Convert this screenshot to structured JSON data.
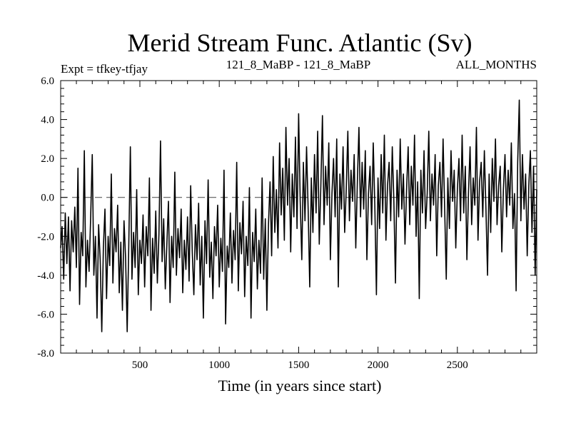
{
  "chart_data": {
    "type": "line",
    "title": "Merid Stream Func. Atlantic (Sv)",
    "subtitle_left": "Expt = tfkey-tfjay",
    "subtitle_center": "121_8_MaBP - 121_8_MaBP",
    "subtitle_right": "ALL_MONTHS",
    "xlabel": "Time (in years since start)",
    "ylabel": "",
    "xlim": [
      1,
      3000
    ],
    "ylim": [
      -8.0,
      6.0
    ],
    "x_ticks": [
      500,
      1000,
      1500,
      2000,
      2500
    ],
    "x_tick_labels": [
      "500",
      "1000",
      "1500",
      "2000",
      "2500"
    ],
    "y_ticks": [
      -8,
      -6,
      -4,
      -2,
      0,
      2,
      4,
      6
    ],
    "y_tick_labels": [
      "-8.0",
      "-6.0",
      "-4.0",
      "-2.0",
      "0.0",
      "2.0",
      "4.0",
      "6.0"
    ],
    "zero_reference_line": true,
    "grid": false,
    "line_color": "#000000",
    "series": [
      {
        "values": [
          [
            1,
            -2.6
          ],
          [
            10,
            -1.5
          ],
          [
            20,
            -4.2
          ],
          [
            30,
            -0.8
          ],
          [
            40,
            -3.4
          ],
          [
            50,
            -1.0
          ],
          [
            60,
            -4.8
          ],
          [
            70,
            -1.2
          ],
          [
            80,
            -2.8
          ],
          [
            90,
            -0.5
          ],
          [
            100,
            -3.6
          ],
          [
            110,
            1.5
          ],
          [
            120,
            -5.5
          ],
          [
            130,
            -1.8
          ],
          [
            140,
            -3.0
          ],
          [
            150,
            2.4
          ],
          [
            160,
            -4.6
          ],
          [
            170,
            -2.2
          ],
          [
            180,
            -3.8
          ],
          [
            190,
            -1.0
          ],
          [
            200,
            2.2
          ],
          [
            210,
            -4.0
          ],
          [
            220,
            -2.0
          ],
          [
            230,
            -6.2
          ],
          [
            240,
            -1.4
          ],
          [
            250,
            -3.2
          ],
          [
            260,
            -6.9
          ],
          [
            270,
            -2.6
          ],
          [
            280,
            -0.6
          ],
          [
            290,
            -5.2
          ],
          [
            300,
            -2.0
          ],
          [
            310,
            -3.5
          ],
          [
            320,
            1.2
          ],
          [
            330,
            -4.4
          ],
          [
            340,
            -1.6
          ],
          [
            350,
            -2.8
          ],
          [
            360,
            -0.4
          ],
          [
            370,
            -4.9
          ],
          [
            380,
            -2.3
          ],
          [
            390,
            -5.8
          ],
          [
            400,
            -1.2
          ],
          [
            410,
            -3.1
          ],
          [
            420,
            -6.9
          ],
          [
            430,
            -2.5
          ],
          [
            440,
            2.6
          ],
          [
            450,
            -4.2
          ],
          [
            460,
            -1.8
          ],
          [
            470,
            -3.6
          ],
          [
            480,
            0.4
          ],
          [
            490,
            -5.0
          ],
          [
            500,
            -2.2
          ],
          [
            510,
            -3.4
          ],
          [
            520,
            -0.9
          ],
          [
            530,
            -4.6
          ],
          [
            540,
            -1.5
          ],
          [
            550,
            -3.0
          ],
          [
            560,
            1.0
          ],
          [
            570,
            -5.8
          ],
          [
            580,
            -2.1
          ],
          [
            590,
            -3.9
          ],
          [
            600,
            -0.7
          ],
          [
            610,
            -4.4
          ],
          [
            620,
            -1.9
          ],
          [
            630,
            2.9
          ],
          [
            640,
            -3.3
          ],
          [
            650,
            -1.1
          ],
          [
            660,
            -4.7
          ],
          [
            670,
            -2.4
          ],
          [
            680,
            -0.2
          ],
          [
            690,
            -5.4
          ],
          [
            700,
            -2.0
          ],
          [
            710,
            -3.6
          ],
          [
            720,
            1.3
          ],
          [
            730,
            -4.0
          ],
          [
            740,
            -1.6
          ],
          [
            750,
            -3.1
          ],
          [
            760,
            -0.6
          ],
          [
            770,
            -4.9
          ],
          [
            780,
            -2.2
          ],
          [
            790,
            -3.7
          ],
          [
            800,
            -1.0
          ],
          [
            810,
            -4.3
          ],
          [
            820,
            0.6
          ],
          [
            830,
            -2.8
          ],
          [
            840,
            -5.0
          ],
          [
            850,
            -1.4
          ],
          [
            860,
            -3.2
          ],
          [
            870,
            -0.3
          ],
          [
            880,
            -4.5
          ],
          [
            890,
            -2.0
          ],
          [
            900,
            -6.2
          ],
          [
            910,
            -1.2
          ],
          [
            920,
            -3.4
          ],
          [
            930,
            0.9
          ],
          [
            940,
            -4.1
          ],
          [
            950,
            -2.3
          ],
          [
            960,
            -5.2
          ],
          [
            970,
            -1.5
          ],
          [
            980,
            -3.0
          ],
          [
            990,
            -0.4
          ],
          [
            1000,
            -4.6
          ],
          [
            1010,
            -2.1
          ],
          [
            1020,
            -3.8
          ],
          [
            1030,
            1.4
          ],
          [
            1040,
            -6.5
          ],
          [
            1050,
            -2.5
          ],
          [
            1060,
            -3.6
          ],
          [
            1070,
            -0.8
          ],
          [
            1080,
            -4.4
          ],
          [
            1090,
            -1.7
          ],
          [
            1100,
            -3.2
          ],
          [
            1110,
            1.8
          ],
          [
            1120,
            -4.8
          ],
          [
            1130,
            -1.3
          ],
          [
            1140,
            -2.9
          ],
          [
            1150,
            -0.2
          ],
          [
            1160,
            -5.1
          ],
          [
            1170,
            -2.0
          ],
          [
            1180,
            -3.5
          ],
          [
            1190,
            0.5
          ],
          [
            1200,
            -6.2
          ],
          [
            1210,
            -1.8
          ],
          [
            1220,
            -3.3
          ],
          [
            1230,
            -0.6
          ],
          [
            1240,
            -4.7
          ],
          [
            1250,
            -2.2
          ],
          [
            1260,
            -3.9
          ],
          [
            1270,
            1.0
          ],
          [
            1280,
            -4.2
          ],
          [
            1290,
            -1.1
          ],
          [
            1300,
            -5.8
          ],
          [
            1310,
            -1.4
          ],
          [
            1320,
            0.8
          ],
          [
            1330,
            -3.0
          ],
          [
            1340,
            2.1
          ],
          [
            1350,
            -1.8
          ],
          [
            1360,
            0.4
          ],
          [
            1370,
            -2.6
          ],
          [
            1380,
            2.8
          ],
          [
            1390,
            -0.9
          ],
          [
            1400,
            1.5
          ],
          [
            1410,
            -2.2
          ],
          [
            1420,
            3.6
          ],
          [
            1430,
            -0.4
          ],
          [
            1440,
            2.0
          ],
          [
            1450,
            -2.8
          ],
          [
            1460,
            1.2
          ],
          [
            1470,
            -1.0
          ],
          [
            1480,
            3.1
          ],
          [
            1490,
            -1.6
          ],
          [
            1500,
            4.3
          ],
          [
            1510,
            -0.2
          ],
          [
            1520,
            -3.2
          ],
          [
            1530,
            1.8
          ],
          [
            1540,
            -1.2
          ],
          [
            1550,
            2.6
          ],
          [
            1560,
            -0.6
          ],
          [
            1570,
            -4.6
          ],
          [
            1580,
            1.0
          ],
          [
            1590,
            -1.8
          ],
          [
            1600,
            2.2
          ],
          [
            1610,
            -0.8
          ],
          [
            1620,
            3.4
          ],
          [
            1630,
            -2.4
          ],
          [
            1640,
            0.6
          ],
          [
            1650,
            4.2
          ],
          [
            1660,
            -1.4
          ],
          [
            1670,
            1.6
          ],
          [
            1680,
            -0.4
          ],
          [
            1690,
            2.8
          ],
          [
            1700,
            -3.2
          ],
          [
            1710,
            0.2
          ],
          [
            1720,
            2.0
          ],
          [
            1730,
            -1.0
          ],
          [
            1740,
            3.0
          ],
          [
            1750,
            -4.6
          ],
          [
            1760,
            1.2
          ],
          [
            1770,
            -0.6
          ],
          [
            1780,
            2.6
          ],
          [
            1790,
            -1.8
          ],
          [
            1800,
            0.4
          ],
          [
            1810,
            3.4
          ],
          [
            1820,
            -1.2
          ],
          [
            1830,
            1.4
          ],
          [
            1840,
            -0.2
          ],
          [
            1850,
            2.2
          ],
          [
            1860,
            -2.6
          ],
          [
            1870,
            0.8
          ],
          [
            1880,
            3.6
          ],
          [
            1890,
            -1.0
          ],
          [
            1900,
            1.8
          ],
          [
            1910,
            -0.6
          ],
          [
            1920,
            2.4
          ],
          [
            1930,
            -3.2
          ],
          [
            1940,
            0.2
          ],
          [
            1950,
            1.6
          ],
          [
            1960,
            -1.4
          ],
          [
            1970,
            2.8
          ],
          [
            1980,
            -0.4
          ],
          [
            1990,
            -5.0
          ],
          [
            2000,
            1.0
          ],
          [
            2010,
            -1.6
          ],
          [
            2020,
            2.2
          ],
          [
            2030,
            -0.8
          ],
          [
            2040,
            3.2
          ],
          [
            2050,
            -2.2
          ],
          [
            2060,
            0.6
          ],
          [
            2070,
            1.8
          ],
          [
            2080,
            -1.2
          ],
          [
            2090,
            2.6
          ],
          [
            2100,
            -0.2
          ],
          [
            2110,
            -4.4
          ],
          [
            2120,
            1.4
          ],
          [
            2130,
            -1.0
          ],
          [
            2140,
            3.0
          ],
          [
            2150,
            -0.6
          ],
          [
            2160,
            1.2
          ],
          [
            2170,
            -2.4
          ],
          [
            2180,
            0.4
          ],
          [
            2190,
            2.6
          ],
          [
            2200,
            -1.4
          ],
          [
            2210,
            1.6
          ],
          [
            2220,
            -0.4
          ],
          [
            2230,
            3.2
          ],
          [
            2240,
            -2.0
          ],
          [
            2250,
            0.8
          ],
          [
            2260,
            -5.2
          ],
          [
            2270,
            1.4
          ],
          [
            2280,
            -0.8
          ],
          [
            2290,
            2.4
          ],
          [
            2300,
            -1.6
          ],
          [
            2310,
            0.2
          ],
          [
            2320,
            3.4
          ],
          [
            2330,
            -1.2
          ],
          [
            2340,
            1.2
          ],
          [
            2350,
            -0.4
          ],
          [
            2360,
            2.2
          ],
          [
            2370,
            -3.0
          ],
          [
            2380,
            0.6
          ],
          [
            2390,
            1.8
          ],
          [
            2400,
            -1.0
          ],
          [
            2410,
            3.0
          ],
          [
            2420,
            -0.6
          ],
          [
            2430,
            -4.2
          ],
          [
            2440,
            1.0
          ],
          [
            2450,
            -1.6
          ],
          [
            2460,
            2.4
          ],
          [
            2470,
            -0.2
          ],
          [
            2480,
            1.4
          ],
          [
            2490,
            -2.6
          ],
          [
            2500,
            0.4
          ],
          [
            2510,
            2.0
          ],
          [
            2520,
            -1.2
          ],
          [
            2530,
            3.2
          ],
          [
            2540,
            -0.8
          ],
          [
            2550,
            1.6
          ],
          [
            2560,
            -3.2
          ],
          [
            2570,
            0.2
          ],
          [
            2580,
            2.6
          ],
          [
            2590,
            -1.4
          ],
          [
            2600,
            1.0
          ],
          [
            2610,
            -0.4
          ],
          [
            2620,
            3.6
          ],
          [
            2630,
            -2.2
          ],
          [
            2640,
            0.8
          ],
          [
            2650,
            1.8
          ],
          [
            2660,
            -1.0
          ],
          [
            2670,
            2.4
          ],
          [
            2680,
            -0.6
          ],
          [
            2690,
            -4.0
          ],
          [
            2700,
            1.2
          ],
          [
            2710,
            -1.8
          ],
          [
            2720,
            2.0
          ],
          [
            2730,
            -0.2
          ],
          [
            2740,
            3.0
          ],
          [
            2750,
            -1.4
          ],
          [
            2760,
            0.6
          ],
          [
            2770,
            1.6
          ],
          [
            2780,
            -2.8
          ],
          [
            2790,
            0.4
          ],
          [
            2800,
            2.2
          ],
          [
            2810,
            -1.0
          ],
          [
            2820,
            1.4
          ],
          [
            2830,
            -0.4
          ],
          [
            2840,
            2.8
          ],
          [
            2850,
            -1.6
          ],
          [
            2860,
            0.2
          ],
          [
            2870,
            -4.8
          ],
          [
            2880,
            1.8
          ],
          [
            2890,
            5.0
          ],
          [
            2900,
            -1.2
          ],
          [
            2910,
            2.2
          ],
          [
            2920,
            -0.6
          ],
          [
            2930,
            1.2
          ],
          [
            2940,
            -3.0
          ],
          [
            2950,
            0.6
          ],
          [
            2960,
            2.4
          ],
          [
            2970,
            -1.8
          ],
          [
            2980,
            1.6
          ],
          [
            2990,
            -4.0
          ],
          [
            3000,
            0.4
          ]
        ]
      }
    ]
  }
}
